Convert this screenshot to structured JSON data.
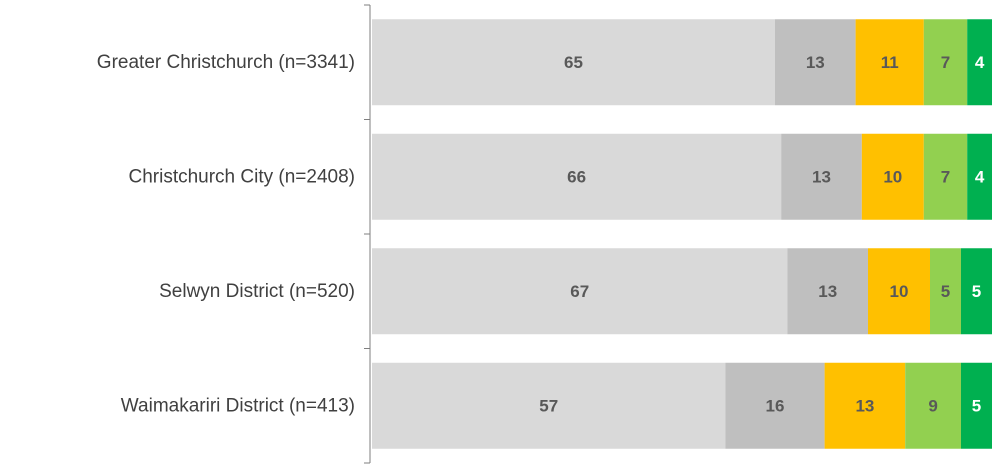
{
  "chart_data": {
    "type": "bar",
    "orientation": "horizontal",
    "stacked": true,
    "categories": [
      "Greater Christchurch (n=3341)",
      "Christchurch City (n=2408)",
      "Selwyn District (n=520)",
      "Waimakariri District (n=413)"
    ],
    "series": [
      {
        "values": [
          65,
          66,
          67,
          57
        ],
        "color": "#d9d9d9",
        "label_color": "#595959"
      },
      {
        "values": [
          13,
          13,
          13,
          16
        ],
        "color": "#bfbfbf",
        "label_color": "#595959"
      },
      {
        "values": [
          11,
          10,
          10,
          13
        ],
        "color": "#ffc000",
        "label_color": "#595959"
      },
      {
        "values": [
          7,
          7,
          5,
          9
        ],
        "color": "#92d050",
        "label_color": "#595959"
      },
      {
        "values": [
          4,
          4,
          5,
          5
        ],
        "color": "#00b050",
        "label_color": "#ffffff"
      }
    ],
    "xlim": [
      0,
      100
    ],
    "grid": false,
    "legend": "none",
    "title": "",
    "xlabel": "",
    "ylabel": ""
  }
}
